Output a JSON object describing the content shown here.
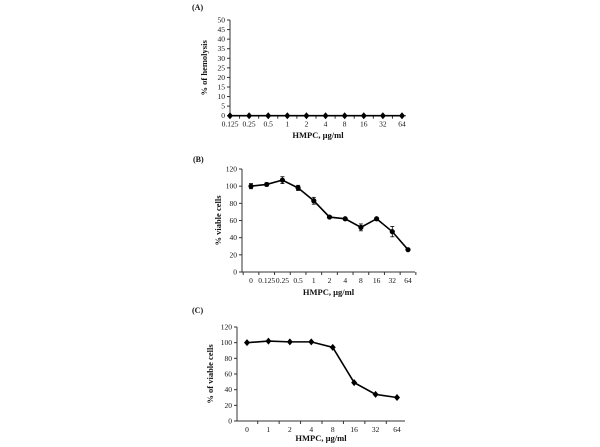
{
  "chart_data": [
    {
      "panel": "(A)",
      "type": "line",
      "xlabel": "HMPC, µg/ml",
      "ylabel": "% of hemolysis",
      "categories": [
        "0.125",
        "0.25",
        "0.5",
        "1",
        "2",
        "4",
        "8",
        "16",
        "32",
        "64"
      ],
      "series": [
        {
          "values": [
            0,
            0,
            0,
            0,
            0,
            0,
            0,
            0,
            0,
            0
          ],
          "marker": "diamond"
        }
      ],
      "ylim": [
        0,
        50
      ],
      "yticks": [
        0,
        5,
        10,
        15,
        20,
        25,
        30,
        35,
        40,
        45,
        50
      ],
      "grid": false,
      "color": "#000000"
    },
    {
      "panel": "(B)",
      "type": "line",
      "xlabel": "HMPC, µg/ml",
      "ylabel": "% viable cells",
      "categories": [
        "0",
        "0.125",
        "0.25",
        "0.5",
        "1",
        "2",
        "4",
        "8",
        "16",
        "32",
        "64"
      ],
      "series": [
        {
          "values": [
            100,
            102,
            107,
            98,
            83,
            64,
            62,
            52,
            62,
            47,
            26
          ],
          "errors": [
            3,
            2,
            4,
            3,
            4,
            1,
            1,
            4,
            1,
            6,
            1
          ],
          "marker": "circle"
        }
      ],
      "ylim": [
        0,
        120
      ],
      "yticks": [
        0,
        20,
        40,
        60,
        80,
        100,
        120
      ],
      "grid": false,
      "color": "#000000"
    },
    {
      "panel": "(C)",
      "type": "line",
      "xlabel": "HMPC, µg/ml",
      "ylabel": "% of viable cells",
      "categories": [
        "0",
        "1",
        "2",
        "4",
        "8",
        "16",
        "32",
        "64"
      ],
      "series": [
        {
          "values": [
            100,
            102,
            101,
            101,
            94,
            49,
            34,
            30
          ],
          "marker": "diamond"
        }
      ],
      "ylim": [
        0,
        120
      ],
      "yticks": [
        0,
        20,
        40,
        60,
        80,
        100,
        120
      ],
      "grid": false,
      "color": "#000000"
    }
  ]
}
